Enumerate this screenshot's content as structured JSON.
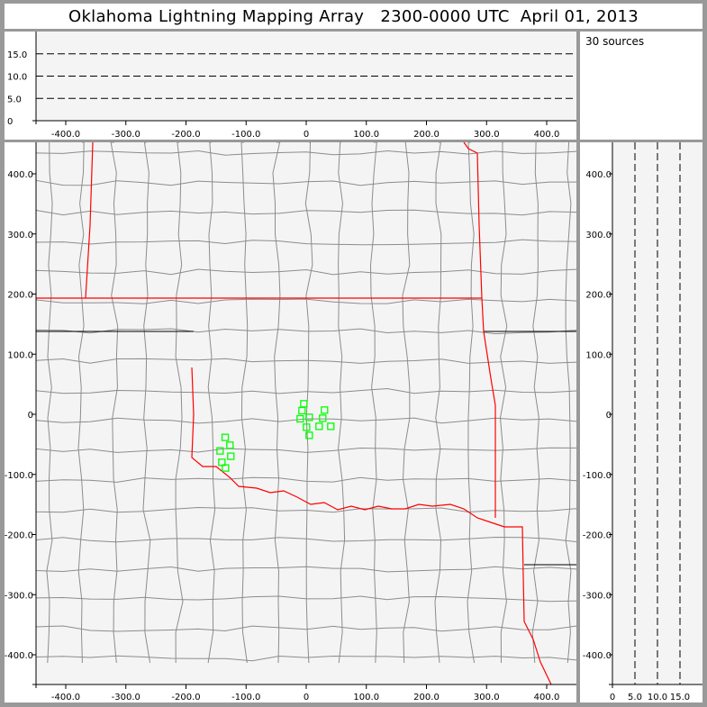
{
  "title": "Oklahoma Lightning Mapping Array   2300-0000 UTC  April 01, 2013",
  "source_count": "30 sources",
  "colors": {
    "frame": "#999999",
    "plot_bg": "#f4f4f4",
    "county": "#8c8c8c",
    "state_border": "#ff0000",
    "source": "#00ff00"
  },
  "chart_data": [
    {
      "type": "scatter",
      "panel": "altitude-vs-east-west",
      "xlim": [
        -452,
        452
      ],
      "ylim": [
        0,
        20
      ],
      "xticks": [
        "-400.0",
        "-300.0",
        "-200.0",
        "-100.0",
        "0",
        "100.0",
        "200.0",
        "300.0",
        "400.0"
      ],
      "yticks": [
        "0",
        "5.0",
        "10.0",
        "15.0"
      ],
      "grid": "dashed horizontal at 5, 10, 15"
    },
    {
      "type": "scatter",
      "panel": "plan-view",
      "xlim": [
        -452,
        452
      ],
      "ylim": [
        -450,
        452
      ],
      "xticks": [
        "-400.0",
        "-300.0",
        "-200.0",
        "-100.0",
        "0",
        "100.0",
        "200.0",
        "300.0",
        "400.0"
      ],
      "yticks": [
        "-400.0",
        "-300.0",
        "-200.0",
        "-100.0",
        "0",
        "100.0",
        "200.0",
        "300.0",
        "400.0"
      ],
      "marker": "hollow square",
      "points": [
        [
          -4.0,
          17.5
        ],
        [
          -7.0,
          6.0
        ],
        [
          30.4,
          7.0
        ],
        [
          -10.0,
          -7.5
        ],
        [
          5.0,
          -5.0
        ],
        [
          27.4,
          -6.5
        ],
        [
          0.5,
          -21.5
        ],
        [
          21.4,
          -20.0
        ],
        [
          40.9,
          -20.0
        ],
        [
          5.0,
          -35.0
        ],
        [
          -134.8,
          -38.4
        ],
        [
          -126.9,
          -51.4
        ],
        [
          -143.3,
          -60.9
        ],
        [
          -125.4,
          -69.8
        ],
        [
          -140.3,
          -79.9
        ],
        [
          -134.3,
          -89.3
        ]
      ]
    },
    {
      "type": "scatter",
      "panel": "north-south-vs-altitude",
      "xlim": [
        0,
        20
      ],
      "ylim": [
        -450,
        452
      ],
      "xticks": [
        "0",
        "5.0",
        "10.0",
        "15.0"
      ],
      "yticks": [
        "-400.0",
        "-300.0",
        "-200.0",
        "-100.0",
        "0",
        "100.0",
        "200.0",
        "300.0",
        "400.0"
      ],
      "grid": "dashed vertical at 5, 10, 15"
    }
  ]
}
